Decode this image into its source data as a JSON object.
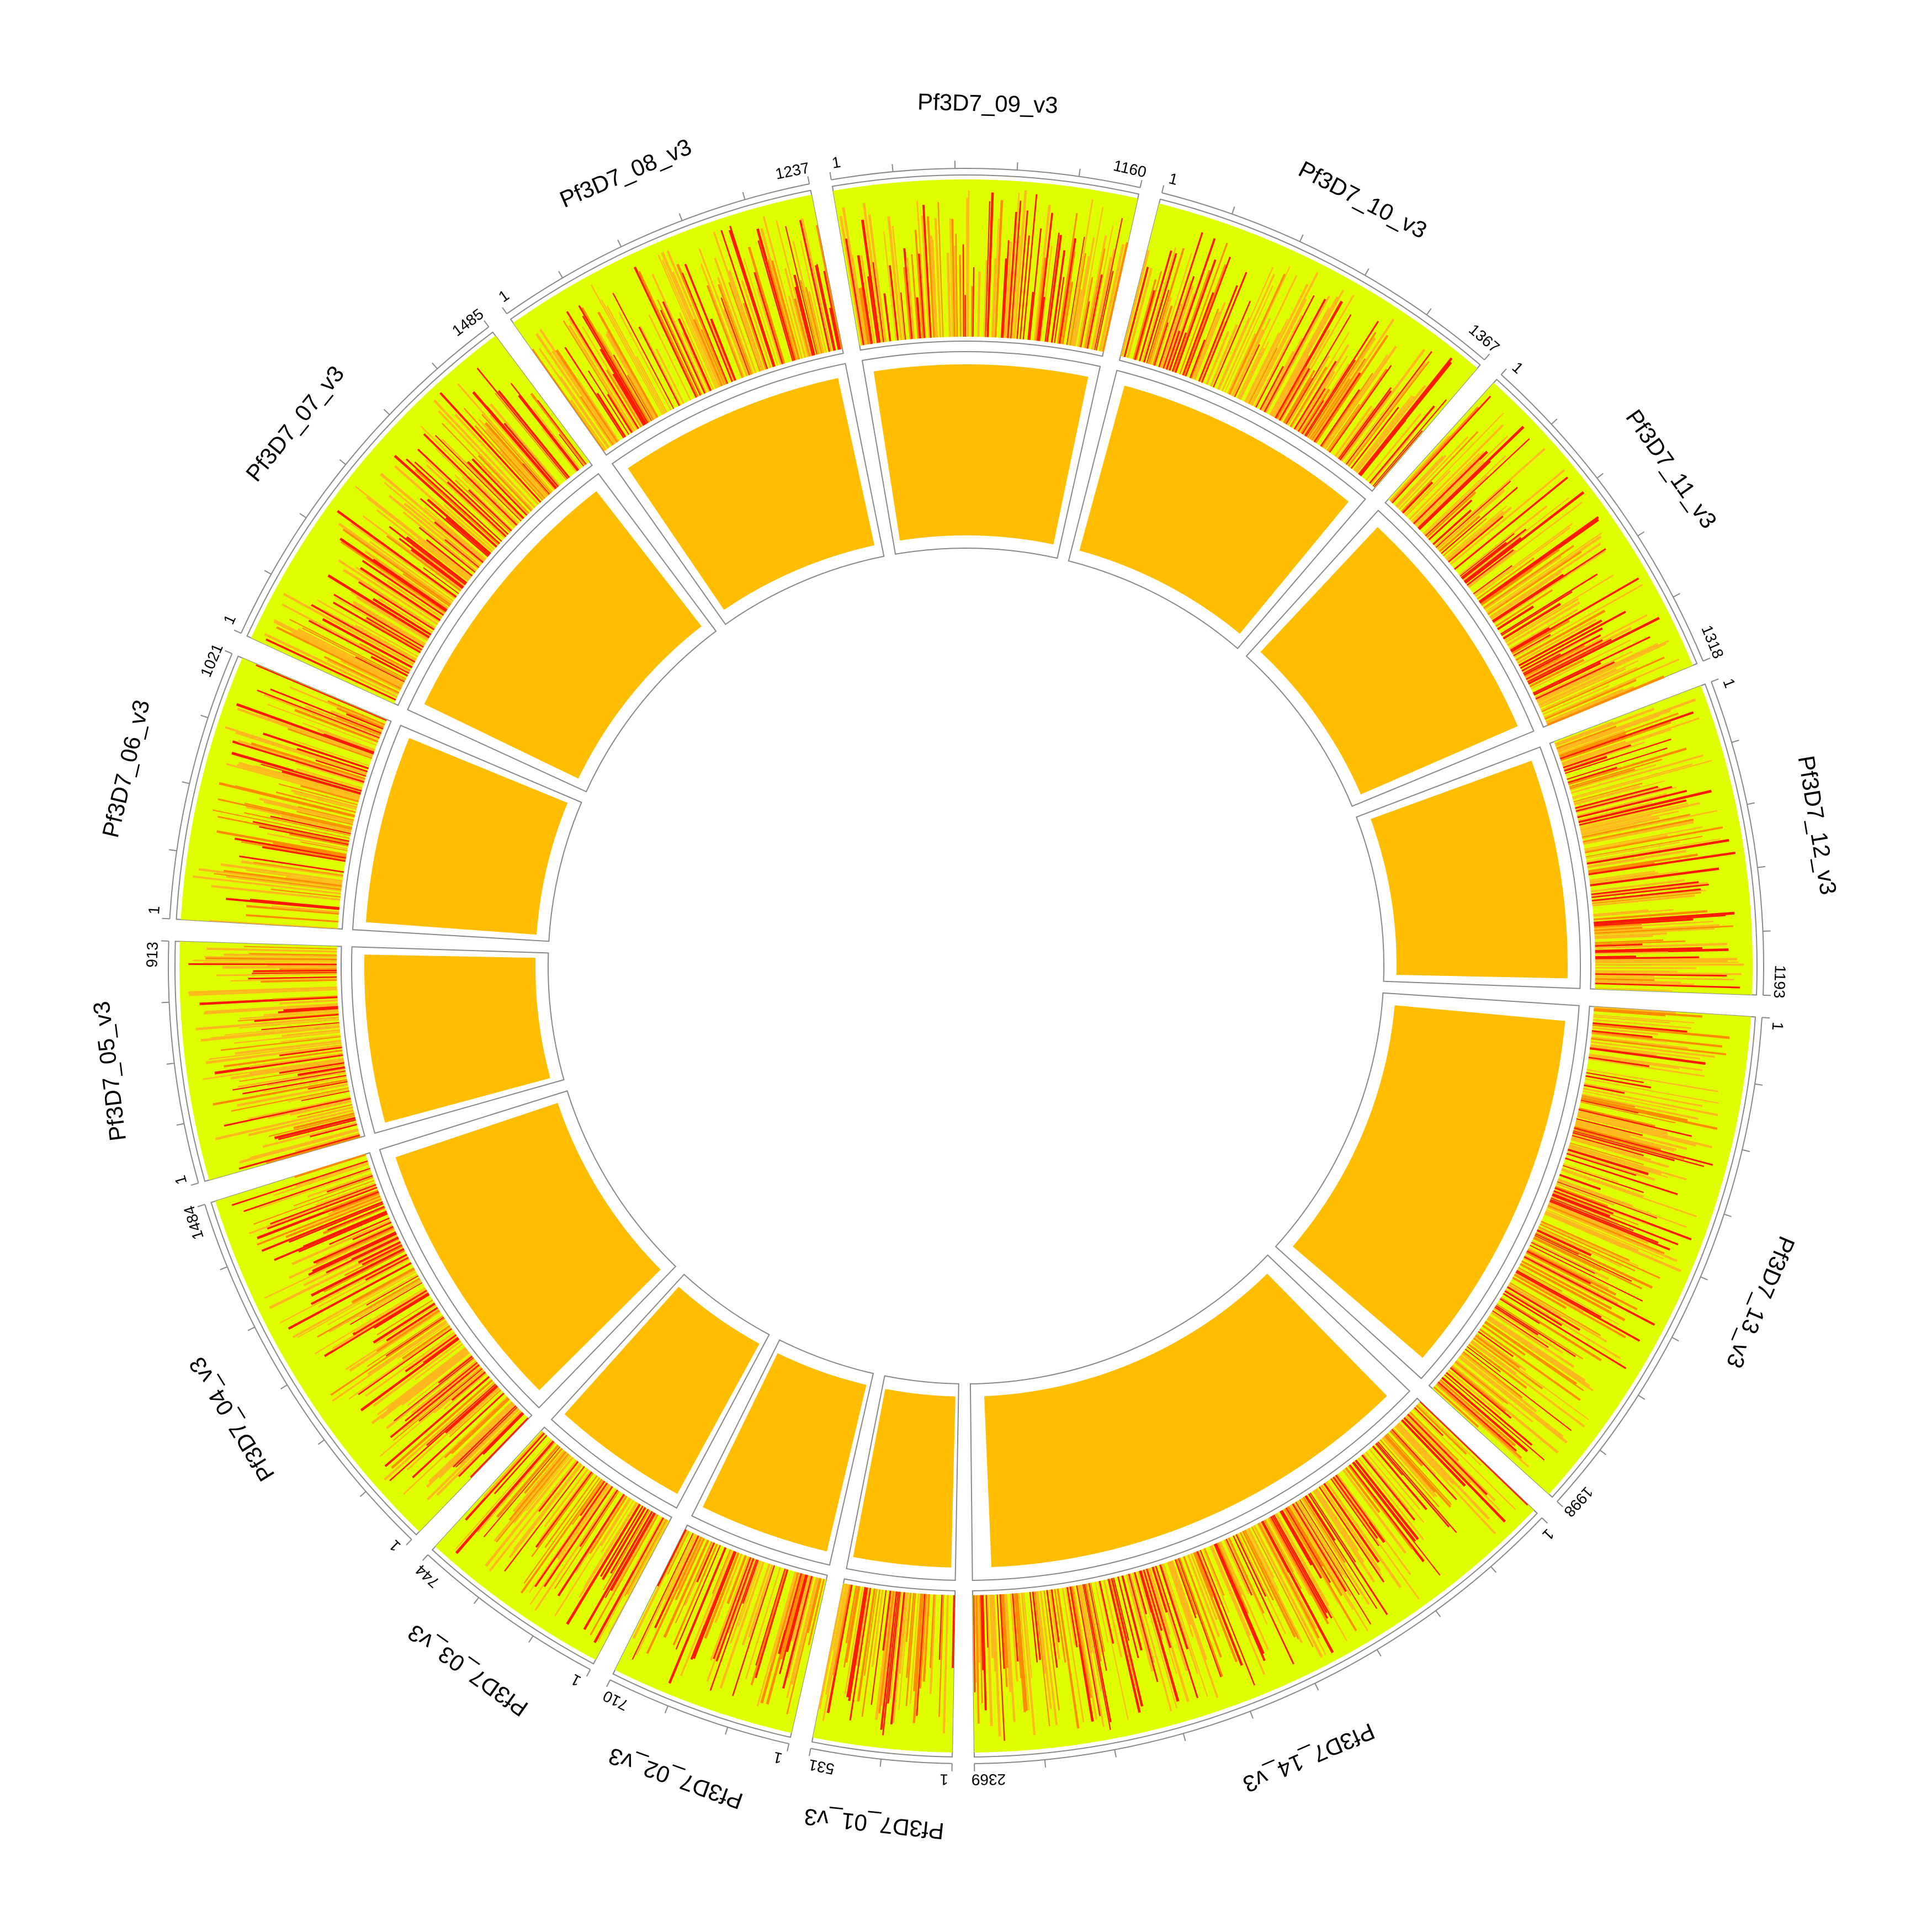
{
  "chart_data": {
    "type": "circos",
    "title": "",
    "colors": {
      "background_track": "#dfff00",
      "light_orange": "#ffb91f",
      "orange": "#ff8c00",
      "red": "#ff1a00",
      "inner_fill": "#ffbd00",
      "outline": "#888888"
    },
    "chromosomes": [
      {
        "name": "Pf3D7_01_v3",
        "start_label": "1",
        "end_label": "531",
        "length": 531
      },
      {
        "name": "Pf3D7_02_v3",
        "start_label": "1",
        "end_label": "710",
        "length": 710
      },
      {
        "name": "Pf3D7_03_v3",
        "start_label": "1",
        "end_label": "744",
        "length": 744
      },
      {
        "name": "Pf3D7_04_v3",
        "start_label": "1",
        "end_label": "1484",
        "length": 1484
      },
      {
        "name": "Pf3D7_05_v3",
        "start_label": "1",
        "end_label": "913",
        "length": 913
      },
      {
        "name": "Pf3D7_06_v3",
        "start_label": "1",
        "end_label": "1021",
        "length": 1021
      },
      {
        "name": "Pf3D7_07_v3",
        "start_label": "1",
        "end_label": "1485",
        "length": 1485
      },
      {
        "name": "Pf3D7_08_v3",
        "start_label": "1",
        "end_label": "1237",
        "length": 1237
      },
      {
        "name": "Pf3D7_09_v3",
        "start_label": "1",
        "end_label": "1160",
        "length": 1160
      },
      {
        "name": "Pf3D7_10_v3",
        "start_label": "1",
        "end_label": "1367",
        "length": 1367
      },
      {
        "name": "Pf3D7_11_v3",
        "start_label": "1",
        "end_label": "1318",
        "length": 1318
      },
      {
        "name": "Pf3D7_12_v3",
        "start_label": "1",
        "end_label": "1193",
        "length": 1193
      },
      {
        "name": "Pf3D7_13_v3",
        "start_label": "1",
        "end_label": "1998",
        "length": 1998
      },
      {
        "name": "Pf3D7_14_v3",
        "start_label": "1",
        "end_label": "2369",
        "length": 2369
      }
    ]
  }
}
